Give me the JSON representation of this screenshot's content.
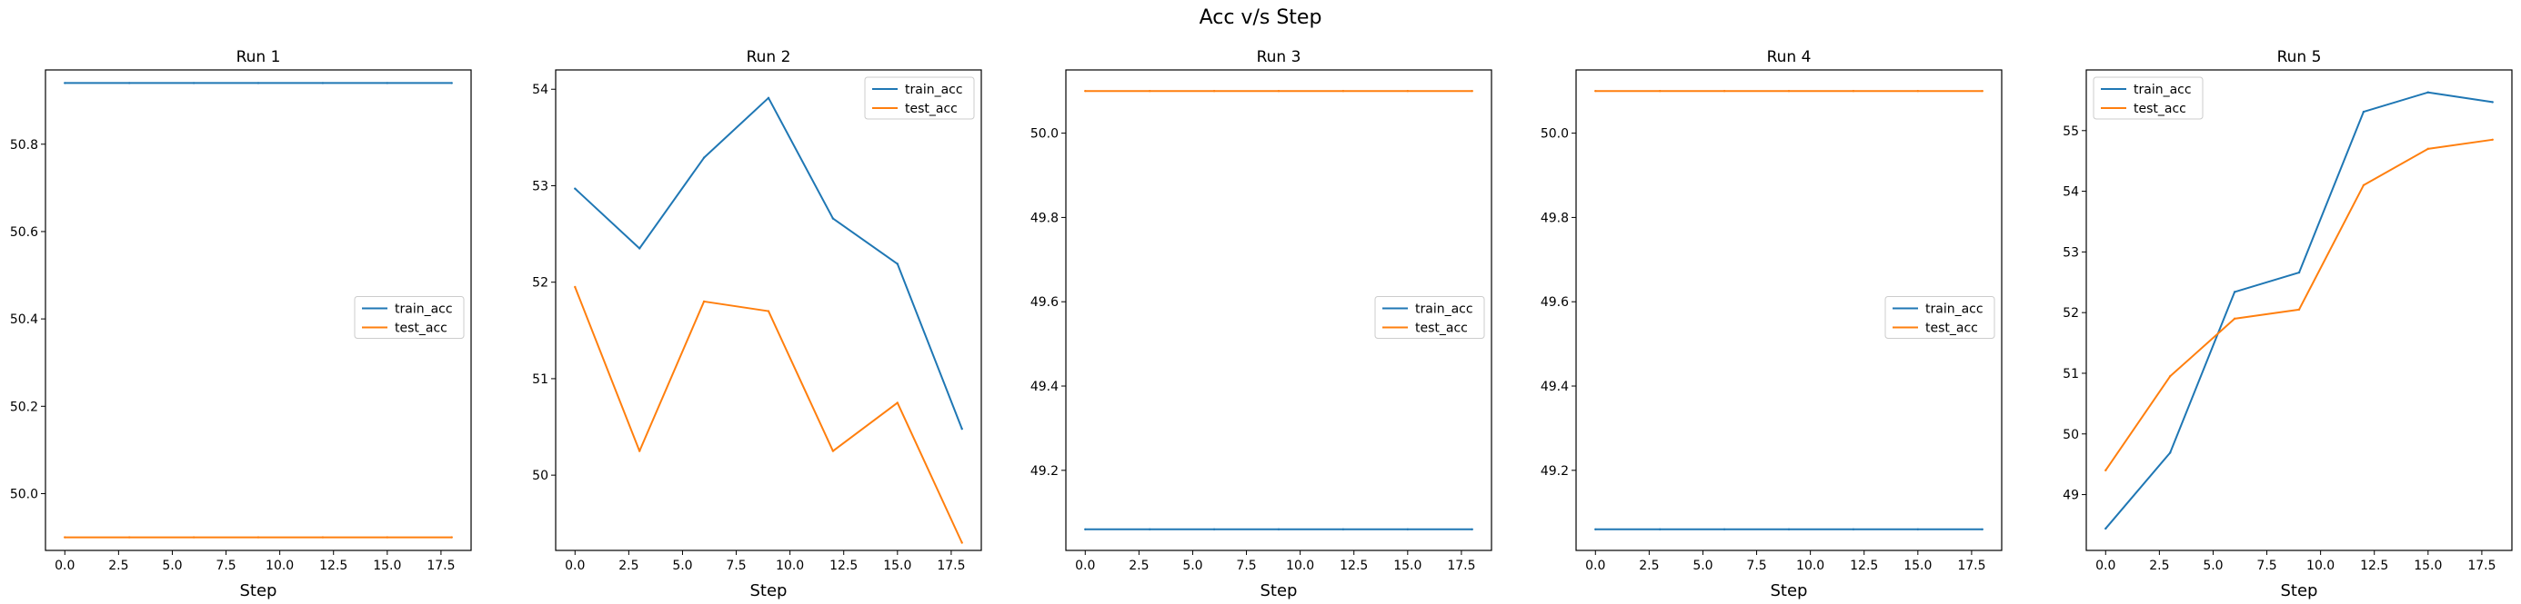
{
  "suptitle": "Acc v/s Step",
  "chart_data": [
    {
      "type": "line",
      "title": "Run 1",
      "xlabel": "Step",
      "ylabel": "",
      "x": [
        0,
        3,
        6,
        9,
        12,
        15,
        18
      ],
      "xticks": [
        "0.0",
        "2.5",
        "5.0",
        "7.5",
        "10.0",
        "12.5",
        "15.0",
        "17.5"
      ],
      "yticks": [
        "50.0",
        "50.2",
        "50.4",
        "50.6",
        "50.8"
      ],
      "legend_position": "center-right",
      "grid": false,
      "series": [
        {
          "name": "train_acc",
          "color": "#1f77b4",
          "values": [
            50.94,
            50.94,
            50.94,
            50.94,
            50.94,
            50.94,
            50.94
          ]
        },
        {
          "name": "test_acc",
          "color": "#ff7f0e",
          "values": [
            49.9,
            49.9,
            49.9,
            49.9,
            49.9,
            49.9,
            49.9
          ]
        }
      ]
    },
    {
      "type": "line",
      "title": "Run 2",
      "xlabel": "Step",
      "ylabel": "",
      "x": [
        0,
        3,
        6,
        9,
        12,
        15,
        18
      ],
      "xticks": [
        "0.0",
        "2.5",
        "5.0",
        "7.5",
        "10.0",
        "12.5",
        "15.0",
        "17.5"
      ],
      "yticks": [
        "50",
        "51",
        "52",
        "53",
        "54"
      ],
      "legend_position": "upper-right",
      "grid": false,
      "series": [
        {
          "name": "train_acc",
          "color": "#1f77b4",
          "values": [
            52.97,
            52.35,
            53.29,
            53.91,
            52.66,
            52.19,
            50.48
          ]
        },
        {
          "name": "test_acc",
          "color": "#ff7f0e",
          "values": [
            51.95,
            50.25,
            51.8,
            51.7,
            50.25,
            50.75,
            49.3
          ]
        }
      ]
    },
    {
      "type": "line",
      "title": "Run 3",
      "xlabel": "Step",
      "ylabel": "",
      "x": [
        0,
        3,
        6,
        9,
        12,
        15,
        18
      ],
      "xticks": [
        "0.0",
        "2.5",
        "5.0",
        "7.5",
        "10.0",
        "12.5",
        "15.0",
        "17.5"
      ],
      "yticks": [
        "49.2",
        "49.4",
        "49.6",
        "49.8",
        "50.0"
      ],
      "legend_position": "center-right",
      "grid": false,
      "series": [
        {
          "name": "train_acc",
          "color": "#1f77b4",
          "values": [
            49.06,
            49.06,
            49.06,
            49.06,
            49.06,
            49.06,
            49.06
          ]
        },
        {
          "name": "test_acc",
          "color": "#ff7f0e",
          "values": [
            50.1,
            50.1,
            50.1,
            50.1,
            50.1,
            50.1,
            50.1
          ]
        }
      ]
    },
    {
      "type": "line",
      "title": "Run 4",
      "xlabel": "Step",
      "ylabel": "",
      "x": [
        0,
        3,
        6,
        9,
        12,
        15,
        18
      ],
      "xticks": [
        "0.0",
        "2.5",
        "5.0",
        "7.5",
        "10.0",
        "12.5",
        "15.0",
        "17.5"
      ],
      "yticks": [
        "49.2",
        "49.4",
        "49.6",
        "49.8",
        "50.0"
      ],
      "legend_position": "center-right",
      "grid": false,
      "series": [
        {
          "name": "train_acc",
          "color": "#1f77b4",
          "values": [
            49.06,
            49.06,
            49.06,
            49.06,
            49.06,
            49.06,
            49.06
          ]
        },
        {
          "name": "test_acc",
          "color": "#ff7f0e",
          "values": [
            50.1,
            50.1,
            50.1,
            50.1,
            50.1,
            50.1,
            50.1
          ]
        }
      ]
    },
    {
      "type": "line",
      "title": "Run 5",
      "xlabel": "Step",
      "ylabel": "",
      "x": [
        0,
        3,
        6,
        9,
        12,
        15,
        18
      ],
      "xticks": [
        "0.0",
        "2.5",
        "5.0",
        "7.5",
        "10.0",
        "12.5",
        "15.0",
        "17.5"
      ],
      "yticks": [
        "49",
        "50",
        "51",
        "52",
        "53",
        "54",
        "55"
      ],
      "legend_position": "upper-left",
      "grid": false,
      "series": [
        {
          "name": "train_acc",
          "color": "#1f77b4",
          "values": [
            48.44,
            49.69,
            52.34,
            52.66,
            55.31,
            55.63,
            55.47
          ]
        },
        {
          "name": "test_acc",
          "color": "#ff7f0e",
          "values": [
            49.4,
            50.95,
            51.9,
            52.05,
            54.1,
            54.7,
            54.85
          ]
        }
      ]
    }
  ]
}
